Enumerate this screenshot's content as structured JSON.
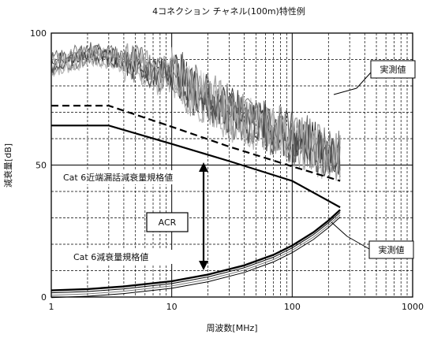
{
  "chart_data": {
    "type": "line",
    "title": "4コネクション チャネル(100m)特性例",
    "xlabel": "周波数[MHz]",
    "ylabel": "減衰量[dB]",
    "x_scale": "log",
    "xlim": [
      1,
      1000
    ],
    "ylim": [
      0,
      100
    ],
    "grid": true,
    "x_ticks": [
      "1",
      "10",
      "100",
      "1000"
    ],
    "y_ticks": [
      "0",
      "50",
      "100"
    ],
    "series": [
      {
        "name": "Cat 6近端漏話減衰量規格値",
        "style": "solid",
        "color": "#000000",
        "x": [
          1,
          2,
          3,
          10,
          30,
          100,
          250
        ],
        "y": [
          65,
          65,
          65,
          58,
          51.5,
          44,
          34
        ]
      },
      {
        "name": "",
        "style": "dashed",
        "color": "#000000",
        "x": [
          1,
          2,
          3,
          10,
          30,
          100,
          250
        ],
        "y": [
          72.5,
          72.5,
          72.5,
          64.5,
          57,
          49.5,
          44
        ]
      },
      {
        "name": "Cat 6減衰量規格値",
        "style": "solid-bundle",
        "color": "#000000",
        "x": [
          1,
          2,
          4,
          10,
          20,
          40,
          70,
          100,
          150,
          200,
          250
        ],
        "y": [
          2.5,
          3,
          4,
          6,
          8.5,
          12,
          16,
          19.5,
          24.5,
          29,
          33
        ]
      },
      {
        "name": "実測値",
        "style": "noisy-bundle",
        "color": "#555555",
        "x": [
          1,
          1.5,
          2,
          3,
          5,
          8,
          10,
          15,
          20,
          30,
          50,
          80,
          100,
          150,
          200,
          250
        ],
        "y": [
          88,
          90,
          92,
          91,
          88,
          84,
          86,
          78,
          76,
          70,
          66,
          62,
          60,
          57,
          54,
          52
        ]
      }
    ],
    "annotations": [
      {
        "text": "実測値"
      },
      {
        "text": "実測値"
      },
      {
        "text": "Cat 6近端漏話減衰量規格値"
      },
      {
        "text": "Cat 6減衰量規格値"
      },
      {
        "text": "ACR"
      }
    ]
  }
}
